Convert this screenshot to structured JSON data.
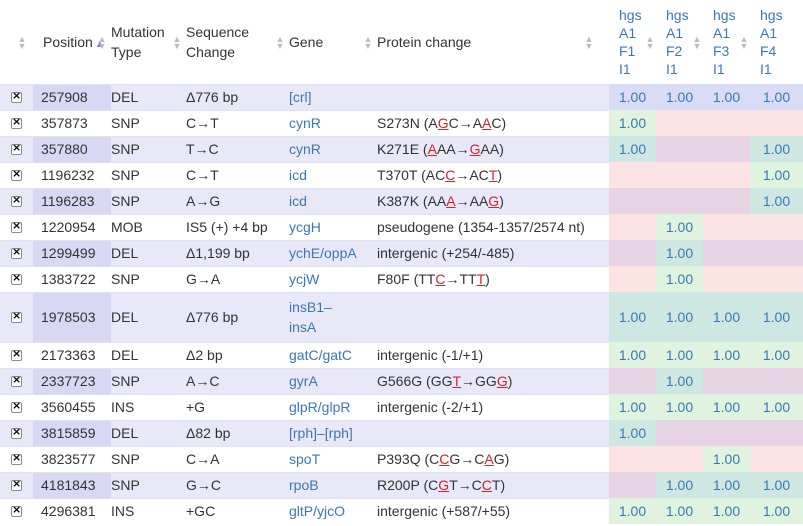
{
  "headers": {
    "position": "Position",
    "mutation_type": [
      "Mutation",
      "Type"
    ],
    "sequence_change": [
      "Sequence",
      "Change"
    ],
    "gene": "Gene",
    "protein_change": "Protein change",
    "samples": [
      [
        "hgs",
        "A1",
        "F1",
        "I1"
      ],
      [
        "hgs",
        "A1",
        "F2",
        "I1"
      ],
      [
        "hgs",
        "A1",
        "F3",
        "I1"
      ],
      [
        "hgs",
        "A1",
        "F4",
        "I1"
      ]
    ],
    "sorted_column": "Position",
    "sort_direction": "ascending"
  },
  "colors": {
    "row_alt": "#e8e8f8",
    "pos_alt": "#d8d8f4",
    "sample_green": "#dff3df",
    "sample_red": "#fbe3e3",
    "sample_teal": "#cfe7e3",
    "sample_mauve": "#e6d3e4",
    "sample_lavender": "#d8dcf4",
    "link": "#3a78b5",
    "highlight_red": "#d5232b"
  },
  "rows": [
    {
      "position": "257908",
      "type": "DEL",
      "seq": "Δ776 bp",
      "gene": "[crl]",
      "protein": "",
      "cov": [
        "1.00",
        "1.00",
        "1.00",
        "1.00"
      ]
    },
    {
      "position": "357873",
      "type": "SNP",
      "seq": "C→T",
      "gene": "cynR",
      "protein": [
        [
          "S273N (A",
          0
        ],
        [
          "G",
          1
        ],
        [
          "C→A",
          0
        ],
        [
          "A",
          1
        ],
        [
          "C)",
          0
        ]
      ],
      "cov": [
        "1.00",
        "",
        "",
        ""
      ]
    },
    {
      "position": "357880",
      "type": "SNP",
      "seq": "T→C",
      "gene": "cynR",
      "protein": [
        [
          "K271E (",
          0
        ],
        [
          "A",
          1
        ],
        [
          "AA→",
          0
        ],
        [
          "G",
          1
        ],
        [
          "AA)",
          0
        ]
      ],
      "cov": [
        "1.00",
        "",
        "",
        "1.00"
      ]
    },
    {
      "position": "1196232",
      "type": "SNP",
      "seq": "C→T",
      "gene": "icd",
      "protein": [
        [
          "T370T (AC",
          0
        ],
        [
          "C",
          1
        ],
        [
          "→AC",
          0
        ],
        [
          "T",
          1
        ],
        [
          ")",
          0
        ]
      ],
      "cov": [
        "",
        "",
        "",
        "1.00"
      ]
    },
    {
      "position": "1196283",
      "type": "SNP",
      "seq": "A→G",
      "gene": "icd",
      "protein": [
        [
          "K387K (AA",
          0
        ],
        [
          "A",
          1
        ],
        [
          "→AA",
          0
        ],
        [
          "G",
          1
        ],
        [
          ")",
          0
        ]
      ],
      "cov": [
        "",
        "",
        "",
        "1.00"
      ]
    },
    {
      "position": "1220954",
      "type": "MOB",
      "seq": "IS5 (+) +4 bp",
      "gene": "ycgH",
      "protein": "pseudogene (1354-1357/2574 nt)",
      "cov": [
        "",
        "1.00",
        "",
        ""
      ]
    },
    {
      "position": "1299499",
      "type": "DEL",
      "seq": "Δ1,199 bp",
      "gene": "ychE/oppA",
      "protein": "intergenic (+254/-485)",
      "cov": [
        "",
        "1.00",
        "",
        ""
      ]
    },
    {
      "position": "1383722",
      "type": "SNP",
      "seq": "G→A",
      "gene": "ycjW",
      "protein": [
        [
          "F80F (TT",
          0
        ],
        [
          "C",
          1
        ],
        [
          "→TT",
          0
        ],
        [
          "T",
          1
        ],
        [
          ")",
          0
        ]
      ],
      "cov": [
        "",
        "1.00",
        "",
        ""
      ]
    },
    {
      "position": "1978503",
      "type": "DEL",
      "seq": "Δ776 bp",
      "gene": [
        "insB1–",
        "insA"
      ],
      "protein": "",
      "cov": [
        "1.00",
        "1.00",
        "1.00",
        "1.00"
      ]
    },
    {
      "position": "2173363",
      "type": "DEL",
      "seq": "Δ2 bp",
      "gene": "gatC/gatC",
      "protein": "intergenic (-1/+1)",
      "cov": [
        "1.00",
        "1.00",
        "1.00",
        "1.00"
      ]
    },
    {
      "position": "2337723",
      "type": "SNP",
      "seq": "A→C",
      "gene": "gyrA",
      "protein": [
        [
          "G566G (GG",
          0
        ],
        [
          "T",
          1
        ],
        [
          "→GG",
          0
        ],
        [
          "G",
          1
        ],
        [
          ")",
          0
        ]
      ],
      "cov": [
        "",
        "1.00",
        "",
        ""
      ]
    },
    {
      "position": "3560455",
      "type": "INS",
      "seq": "+G",
      "gene": "glpR/glpR",
      "protein": "intergenic (-2/+1)",
      "cov": [
        "1.00",
        "1.00",
        "1.00",
        "1.00"
      ]
    },
    {
      "position": "3815859",
      "type": "DEL",
      "seq": "Δ82 bp",
      "gene": "[rph]–[rph]",
      "protein": "",
      "cov": [
        "1.00",
        "",
        "",
        ""
      ]
    },
    {
      "position": "3823577",
      "type": "SNP",
      "seq": "C→A",
      "gene": "spoT",
      "protein": [
        [
          "P393Q (C",
          0
        ],
        [
          "C",
          1
        ],
        [
          "G→C",
          0
        ],
        [
          "A",
          1
        ],
        [
          "G)",
          0
        ]
      ],
      "cov": [
        "",
        "",
        "1.00",
        ""
      ]
    },
    {
      "position": "4181843",
      "type": "SNP",
      "seq": "G→C",
      "gene": "rpoB",
      "protein": [
        [
          "R200P (C",
          0
        ],
        [
          "G",
          1
        ],
        [
          "T→C",
          0
        ],
        [
          "C",
          1
        ],
        [
          "T)",
          0
        ]
      ],
      "cov": [
        "",
        "1.00",
        "1.00",
        "1.00"
      ]
    },
    {
      "position": "4296381",
      "type": "INS",
      "seq": "+GC",
      "gene": "gltP/yjcO",
      "protein": "intergenic (+587/+55)",
      "cov": [
        "1.00",
        "1.00",
        "1.00",
        "1.00"
      ]
    }
  ]
}
